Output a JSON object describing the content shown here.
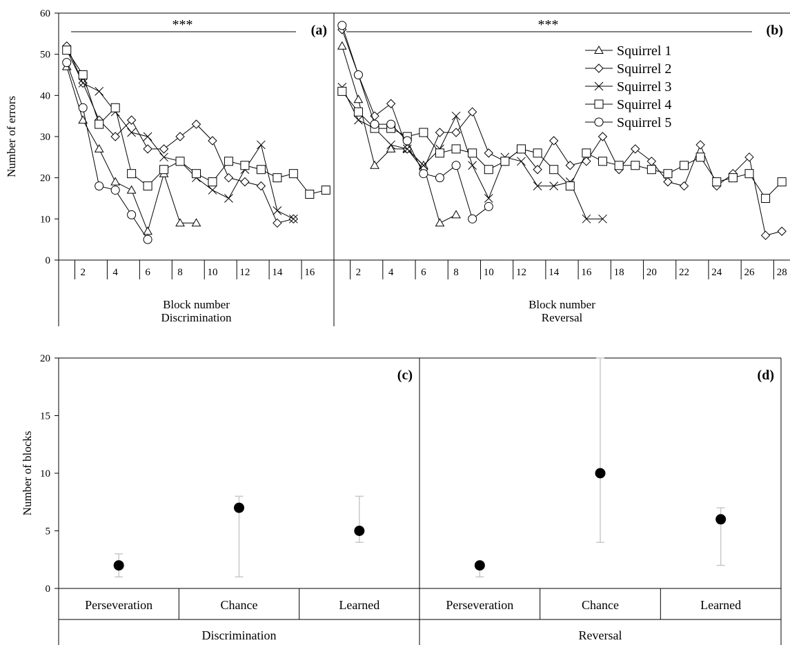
{
  "chart_data": [
    {
      "panel": "(a)",
      "type": "line",
      "ylabel": "Number of errors",
      "xlabel": "Block number",
      "group_label": "Discrimination",
      "significance": "***",
      "ylim": [
        0,
        60
      ],
      "yticks": [
        0,
        10,
        20,
        30,
        40,
        50,
        60
      ],
      "x_range": [
        1,
        17
      ],
      "xtick_labels": [
        "2",
        "4",
        "6",
        "8",
        "10",
        "12",
        "14",
        "16"
      ],
      "legend": "none",
      "series": [
        {
          "name": "Squirrel 1",
          "marker": "triangle",
          "x": [
            1,
            2,
            3,
            4,
            5,
            6,
            7,
            8,
            9
          ],
          "y": [
            47,
            34,
            27,
            19,
            17,
            7,
            21,
            9,
            9
          ]
        },
        {
          "name": "Squirrel 2",
          "marker": "diamond",
          "x": [
            1,
            2,
            3,
            4,
            5,
            6,
            7,
            8,
            9,
            10,
            11,
            12,
            13,
            14,
            15
          ],
          "y": [
            52,
            43,
            34,
            30,
            34,
            27,
            27,
            30,
            33,
            29,
            20,
            19,
            18,
            9,
            10
          ]
        },
        {
          "name": "Squirrel 3",
          "marker": "x",
          "x": [
            1,
            2,
            3,
            4,
            5,
            6,
            7,
            8,
            9,
            10,
            11,
            12,
            13,
            14,
            15
          ],
          "y": [
            51,
            43,
            41,
            36,
            31,
            30,
            25,
            24,
            20,
            17,
            15,
            22,
            28,
            12,
            10
          ]
        },
        {
          "name": "Squirrel 4",
          "marker": "square",
          "x": [
            1,
            2,
            3,
            4,
            5,
            6,
            7,
            8,
            9,
            10,
            11,
            12,
            13,
            14,
            15,
            16,
            17
          ],
          "y": [
            51,
            45,
            33,
            37,
            21,
            18,
            22,
            24,
            21,
            19,
            24,
            23,
            22,
            20,
            21,
            16,
            17
          ]
        },
        {
          "name": "Squirrel 5",
          "marker": "circle",
          "x": [
            1,
            2,
            3,
            4,
            5,
            6
          ],
          "y": [
            48,
            37,
            18,
            17,
            11,
            5
          ]
        }
      ]
    },
    {
      "panel": "(b)",
      "type": "line",
      "ylabel": "",
      "xlabel": "Block number",
      "group_label": "Reversal",
      "significance": "***",
      "ylim": [
        0,
        60
      ],
      "x_range": [
        1,
        28
      ],
      "xtick_labels": [
        "2",
        "4",
        "6",
        "8",
        "10",
        "12",
        "14",
        "16",
        "18",
        "20",
        "22",
        "24",
        "26",
        "28"
      ],
      "legend": "top-right",
      "series": [
        {
          "name": "Squirrel 1",
          "marker": "triangle",
          "x": [
            1,
            2,
            3,
            4,
            5,
            6,
            7,
            8
          ],
          "y": [
            52,
            39,
            23,
            27,
            27,
            23,
            9,
            11
          ]
        },
        {
          "name": "Squirrel 2",
          "marker": "diamond",
          "x": [
            1,
            2,
            3,
            4,
            5,
            6,
            7,
            8,
            9,
            10,
            11,
            12,
            13,
            14,
            15,
            16,
            17,
            18,
            19,
            20,
            21,
            22,
            23,
            24,
            25,
            26,
            27,
            28
          ],
          "y": [
            56,
            45,
            35,
            38,
            27,
            22,
            31,
            31,
            36,
            26,
            24,
            27,
            22,
            29,
            23,
            24,
            30,
            22,
            27,
            24,
            19,
            18,
            28,
            18,
            21,
            25,
            6,
            7
          ]
        },
        {
          "name": "Squirrel 3",
          "marker": "x",
          "x": [
            1,
            2,
            3,
            4,
            5,
            6,
            7,
            8,
            9,
            10,
            11,
            12,
            13,
            14,
            15,
            16,
            17
          ],
          "y": [
            42,
            34,
            32,
            28,
            27,
            23,
            27,
            35,
            23,
            15,
            25,
            24,
            18,
            18,
            19,
            10,
            10
          ]
        },
        {
          "name": "Squirrel 4",
          "marker": "square",
          "x": [
            1,
            2,
            3,
            4,
            5,
            6,
            7,
            8,
            9,
            10,
            11,
            12,
            13,
            14,
            15,
            16,
            17,
            18,
            19,
            20,
            21,
            22,
            23,
            24,
            25,
            26,
            27,
            28
          ],
          "y": [
            41,
            36,
            32,
            32,
            30,
            31,
            26,
            27,
            26,
            22,
            24,
            27,
            26,
            22,
            18,
            26,
            24,
            23,
            23,
            22,
            21,
            23,
            25,
            19,
            20,
            21,
            15,
            19
          ]
        },
        {
          "name": "Squirrel 5",
          "marker": "circle",
          "x": [
            1,
            2,
            3,
            4,
            5,
            6,
            7,
            8,
            9,
            10
          ],
          "y": [
            57,
            45,
            33,
            33,
            29,
            21,
            20,
            23,
            10,
            13
          ]
        }
      ]
    },
    {
      "panel": "(c)",
      "type": "scatter",
      "ylabel": "Number of blocks",
      "group_label": "Discrimination",
      "ylim": [
        0,
        20
      ],
      "yticks": [
        0,
        5,
        10,
        15,
        20
      ],
      "categories": [
        "Perseveration",
        "Chance",
        "Learned"
      ],
      "values": [
        2,
        7,
        5
      ],
      "error_low": [
        1,
        1,
        4
      ],
      "error_high": [
        3,
        8,
        8
      ]
    },
    {
      "panel": "(d)",
      "type": "scatter",
      "ylabel": "",
      "group_label": "Reversal",
      "ylim": [
        0,
        20
      ],
      "categories": [
        "Perseveration",
        "Chance",
        "Learned"
      ],
      "values": [
        2,
        10,
        6
      ],
      "error_low": [
        1,
        4,
        2
      ],
      "error_high": [
        2,
        20,
        7
      ]
    }
  ],
  "colors": {
    "axis": "#000000",
    "errorbar": "#c8c8c8",
    "point": "#000000"
  }
}
